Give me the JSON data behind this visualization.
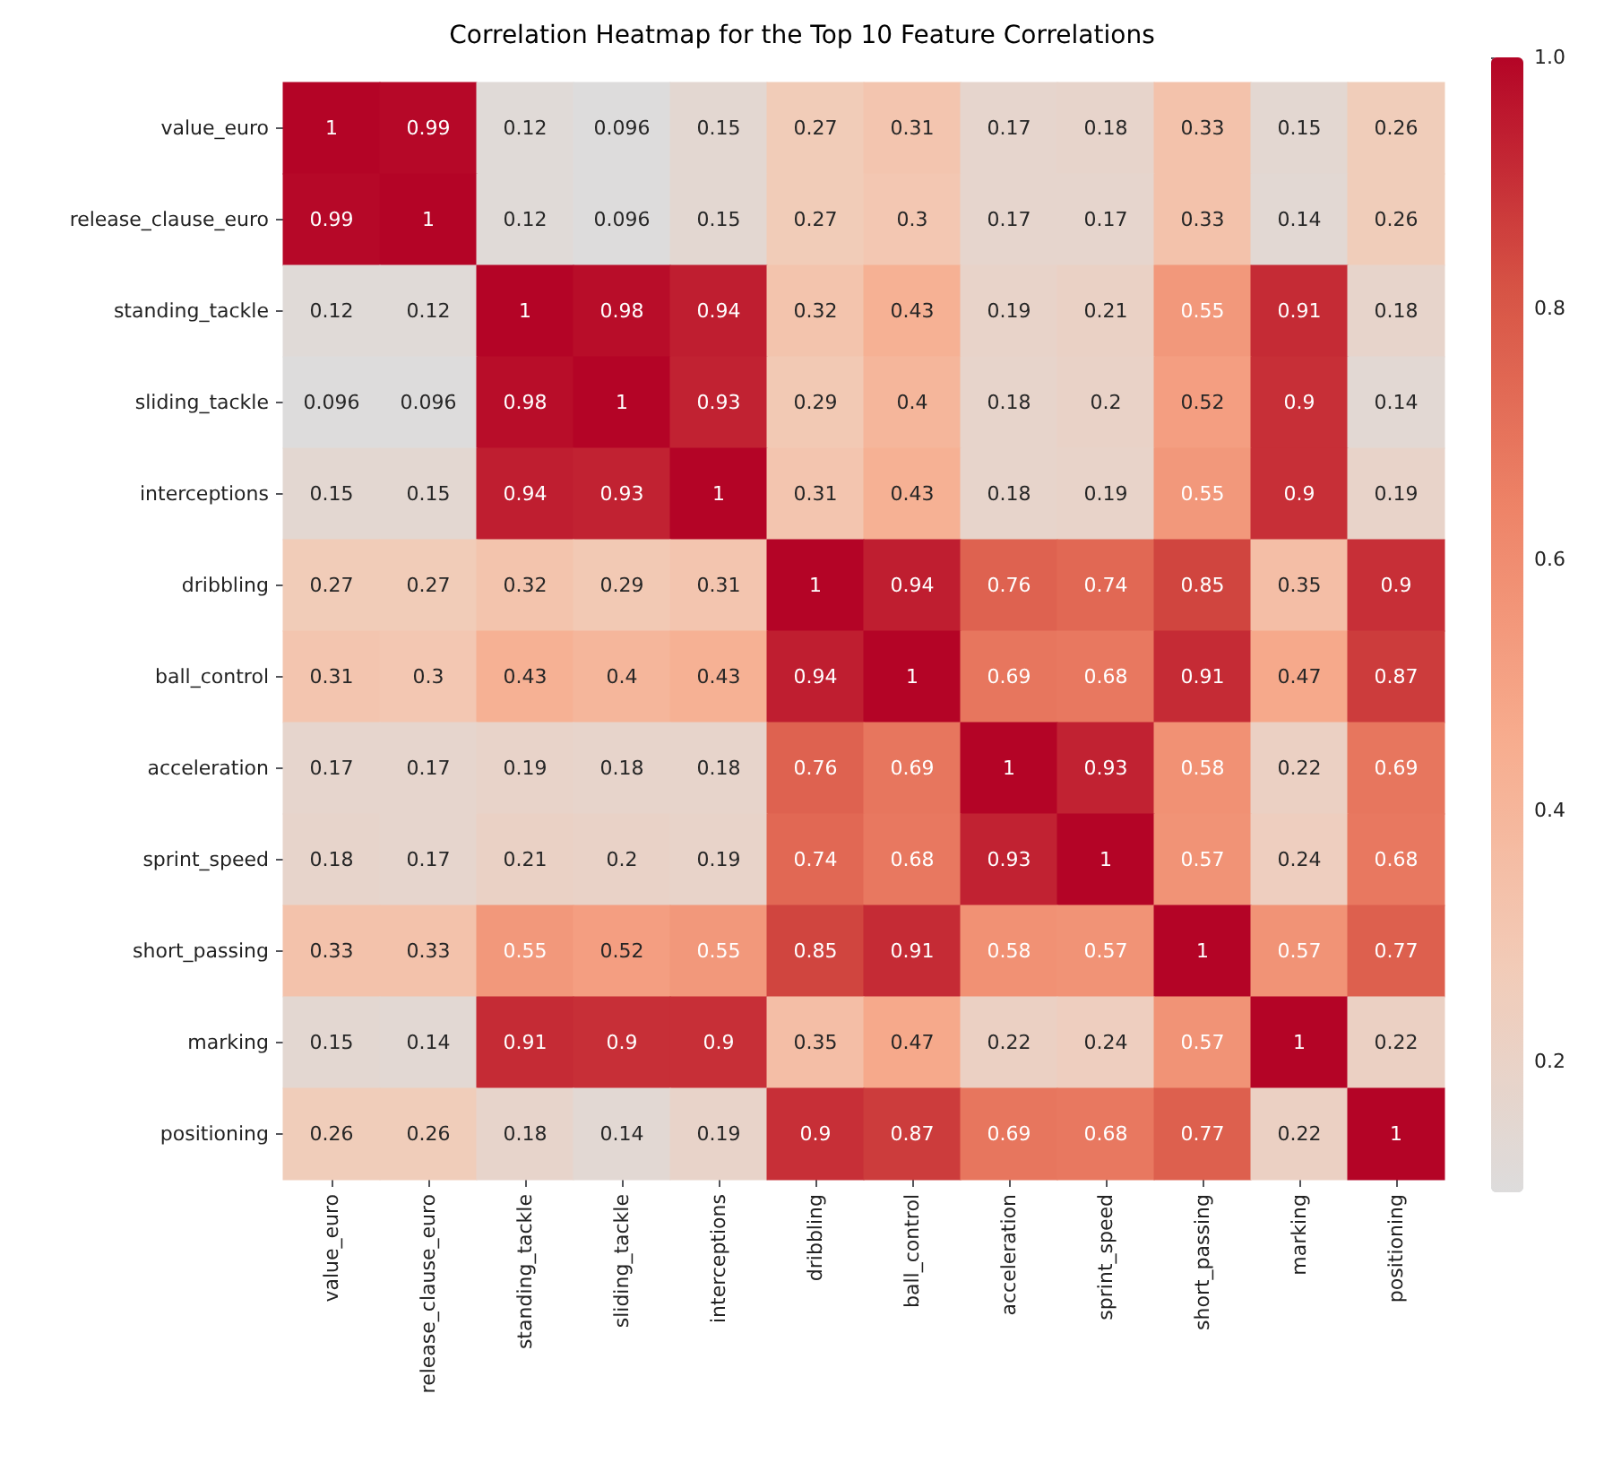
{
  "chart_data": {
    "type": "heatmap",
    "title": "Correlation Heatmap for the Top 10 Feature Correlations",
    "categories": [
      "value_euro",
      "release_clause_euro",
      "standing_tackle",
      "sliding_tackle",
      "interceptions",
      "dribbling",
      "ball_control",
      "acceleration",
      "sprint_speed",
      "short_passing",
      "marking",
      "positioning"
    ],
    "y_categories": [
      "value_euro",
      "release_clause_euro",
      "standing_tackle",
      "sliding_tackle",
      "interceptions",
      "dribbling",
      "ball_control",
      "acceleration",
      "sprint_speed",
      "short_passing",
      "marking",
      "positioning"
    ],
    "cells": [
      [
        1,
        0.99,
        0.12,
        0.096,
        0.15,
        0.27,
        0.31,
        0.17,
        0.18,
        0.33,
        0.15,
        0.26
      ],
      [
        0.99,
        1,
        0.12,
        0.096,
        0.15,
        0.27,
        0.3,
        0.17,
        0.17,
        0.33,
        0.14,
        0.26
      ],
      [
        0.12,
        0.12,
        1,
        0.98,
        0.94,
        0.32,
        0.43,
        0.19,
        0.21,
        0.55,
        0.91,
        0.18
      ],
      [
        0.096,
        0.096,
        0.98,
        1,
        0.93,
        0.29,
        0.4,
        0.18,
        0.2,
        0.52,
        0.9,
        0.14
      ],
      [
        0.15,
        0.15,
        0.94,
        0.93,
        1,
        0.31,
        0.43,
        0.18,
        0.19,
        0.55,
        0.9,
        0.19
      ],
      [
        0.27,
        0.27,
        0.32,
        0.29,
        0.31,
        1,
        0.94,
        0.76,
        0.74,
        0.85,
        0.35,
        0.9
      ],
      [
        0.31,
        0.3,
        0.43,
        0.4,
        0.43,
        0.94,
        1,
        0.69,
        0.68,
        0.91,
        0.47,
        0.87
      ],
      [
        0.17,
        0.17,
        0.19,
        0.18,
        0.18,
        0.76,
        0.69,
        1,
        0.93,
        0.58,
        0.22,
        0.69
      ],
      [
        0.18,
        0.17,
        0.21,
        0.2,
        0.19,
        0.74,
        0.68,
        0.93,
        1,
        0.57,
        0.24,
        0.68
      ],
      [
        0.33,
        0.33,
        0.55,
        0.52,
        0.55,
        0.85,
        0.91,
        0.58,
        0.57,
        1,
        0.57,
        0.77
      ],
      [
        0.15,
        0.14,
        0.91,
        0.9,
        0.9,
        0.35,
        0.47,
        0.22,
        0.24,
        0.57,
        1,
        0.22
      ],
      [
        0.26,
        0.26,
        0.18,
        0.14,
        0.19,
        0.9,
        0.87,
        0.69,
        0.68,
        0.77,
        0.22,
        1
      ]
    ],
    "clim": [
      0.096,
      1
    ],
    "cticks": [
      0.2,
      0.4,
      0.6,
      0.8,
      {
        "value": 1,
        "label": "1.0"
      }
    ],
    "data_labels": true
  }
}
